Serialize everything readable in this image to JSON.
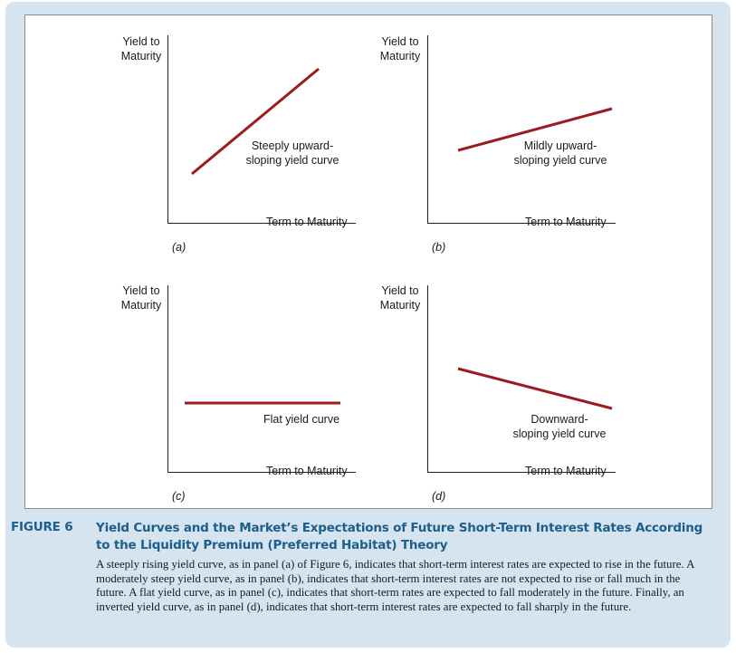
{
  "figure": {
    "label": "FIGURE 6",
    "title": "Yield Curves and the Market’s Expectations of Future Short-Term Interest Rates According to the Liquidity Premium (Preferred Habitat) Theory",
    "caption": "A steeply rising yield curve, as in panel (a) of Figure 6, indicates that short-term interest rates are expected to rise in the future. A moderately steep yield curve, as in panel (b), indicates that short-term interest rates are not expected to rise or fall much in the future. A flat yield curve, as in panel (c), indicates that short-term rates are expected to fall moderately in the future. Finally, an inverted yield curve, as in panel (d), indicates that short-term interest rates are expected to fall sharply in the future.",
    "colors": {
      "curve": "#9b1b1f",
      "title": "#1c5e8c",
      "background": "#d6e4ef"
    }
  },
  "panels": [
    {
      "id": "(a)",
      "y_axis_label": "Yield to\nMaturity",
      "x_axis_label": "Term to Maturity",
      "curve_label": "Steeply upward-\nsloping yield curve",
      "trend": "steeply upward-sloping"
    },
    {
      "id": "(b)",
      "y_axis_label": "Yield to\nMaturity",
      "x_axis_label": "Term to Maturity",
      "curve_label": "Mildly upward-\nsloping yield curve",
      "trend": "mildly upward-sloping"
    },
    {
      "id": "(c)",
      "y_axis_label": "Yield to\nMaturity",
      "x_axis_label": "Term to Maturity",
      "curve_label": "Flat yield curve",
      "trend": "flat"
    },
    {
      "id": "(d)",
      "y_axis_label": "Yield to\nMaturity",
      "x_axis_label": "Term to Maturity",
      "curve_label": "Downward-\nsloping yield curve",
      "trend": "downward-sloping"
    }
  ]
}
